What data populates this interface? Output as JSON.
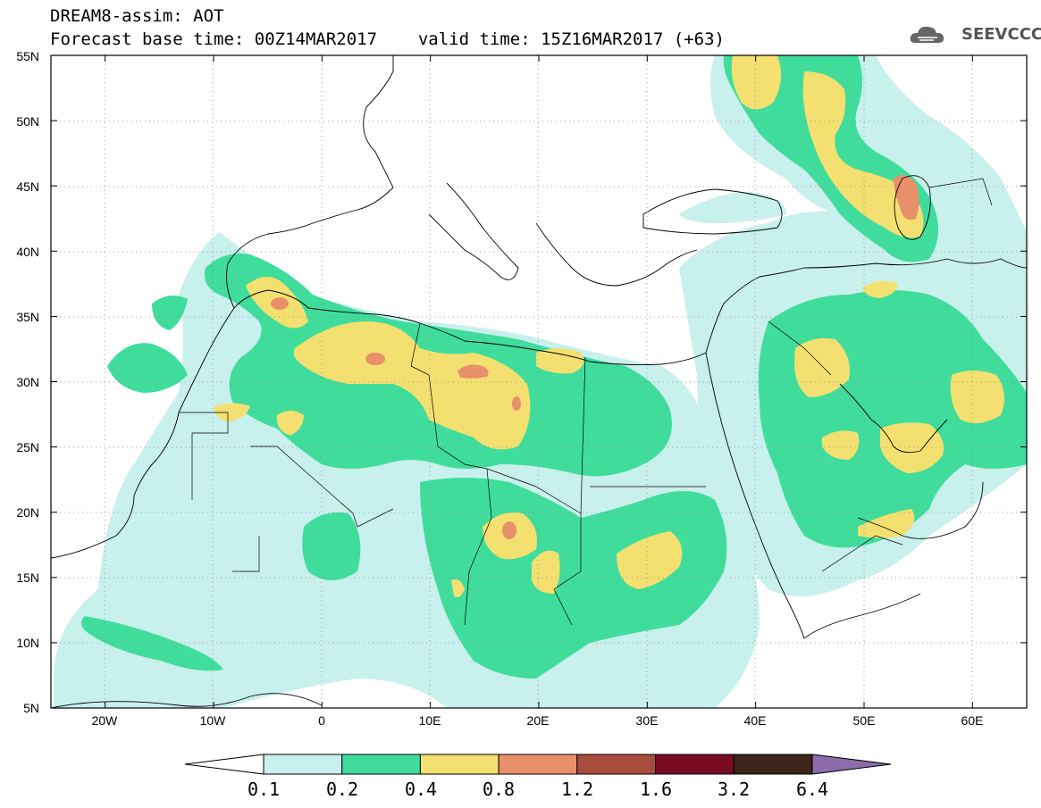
{
  "title": {
    "line1": "DREAM8-assim: AOT",
    "base_time_label": "Forecast base time: 00Z14MAR2017",
    "valid_time_label": "valid time: 15Z16MAR2017 (+63)"
  },
  "logo": {
    "text": "SEEVCCC",
    "icon": "cloud-icon"
  },
  "map": {
    "lon_labels": [
      "20W",
      "10W",
      "0",
      "10E",
      "20E",
      "30E",
      "40E",
      "50E",
      "60E"
    ],
    "lat_labels": [
      "55N",
      "50N",
      "45N",
      "40N",
      "35N",
      "30N",
      "25N",
      "20N",
      "15N",
      "10N",
      "5N"
    ],
    "extent": {
      "lon": [
        -25,
        65
      ],
      "lat": [
        5,
        55
      ]
    }
  },
  "legend": {
    "colors": [
      "#c8f0ec",
      "#40dc9c",
      "#f4e070",
      "#e8906a",
      "#a84c3c",
      "#780a24",
      "#3c2418",
      "#8c6ca8"
    ],
    "tick_labels": [
      "0.1",
      "0.2",
      "0.4",
      "0.8",
      "1.2",
      "1.6",
      "3.2",
      "6.4"
    ]
  }
}
